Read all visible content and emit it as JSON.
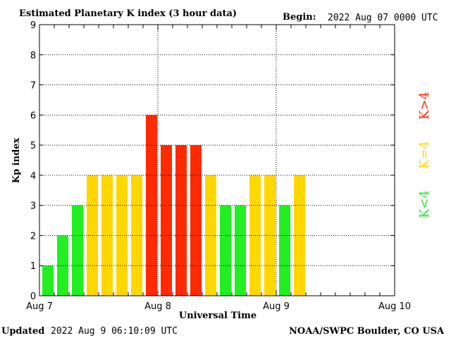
{
  "header": {
    "title": "Estimated Planetary K index (3 hour data)",
    "begin_label": "Begin:",
    "begin_value": "2022 Aug 07 0000 UTC"
  },
  "footer": {
    "updated_label": "Updated",
    "updated_value": "2022 Aug  9 06:10:09 UTC",
    "source": "NOAA/SWPC Boulder, CO USA"
  },
  "legend": {
    "low": "K<4",
    "mid": "K=4",
    "high": "K>4"
  },
  "colors": {
    "low": "#22ee22",
    "mid": "#ffd700",
    "high": "#ff2a00"
  },
  "chart_data": {
    "type": "bar",
    "title": "Estimated Planetary K index (3 hour data)",
    "xlabel": "Universal Time",
    "ylabel": "Kp index",
    "ylim": [
      0,
      9
    ],
    "yticks": [
      "0",
      "1",
      "2",
      "3",
      "4",
      "5",
      "6",
      "7",
      "8",
      "9"
    ],
    "xticks": [
      "Aug 7",
      "Aug 8",
      "Aug 9",
      "Aug 10"
    ],
    "bin_hours": 3,
    "x_start": "2022-08-07 00:00 UTC",
    "x_end": "2022-08-10 00:00 UTC",
    "values": [
      1,
      2,
      3,
      4,
      4,
      4,
      4,
      6,
      5,
      5,
      5,
      4,
      3,
      3,
      4,
      4,
      3,
      4
    ],
    "grid": true
  }
}
